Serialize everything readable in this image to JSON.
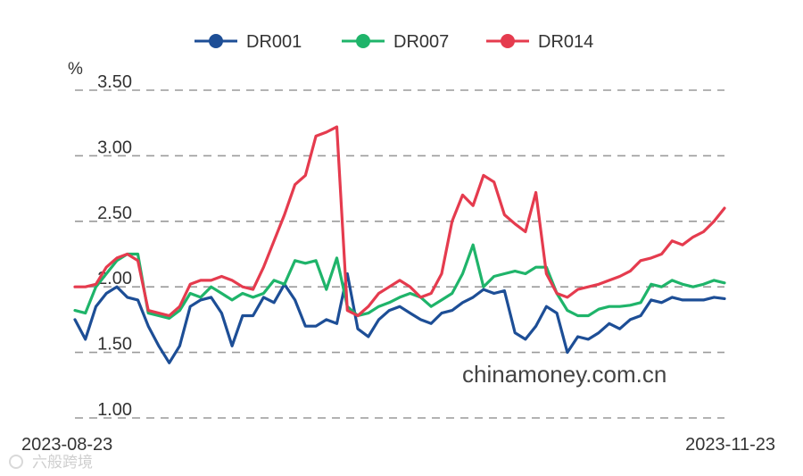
{
  "chart_data": {
    "type": "line",
    "unit_label": "%",
    "ylim": [
      1.0,
      3.5
    ],
    "y_ticks": [
      "1.00",
      "1.50",
      "2.00",
      "2.50",
      "3.00",
      "3.50"
    ],
    "grid": true,
    "legend_position": "top-center",
    "x_start_label": "2023-08-23",
    "x_end_label": "2023-11-23",
    "watermark": "chinamoney.com.cn",
    "logo_text": "六般跨境",
    "series": [
      {
        "name": "DR001",
        "color": "#1d4e96",
        "values": [
          1.75,
          1.6,
          1.85,
          1.95,
          2.0,
          1.92,
          1.9,
          1.7,
          1.55,
          1.42,
          1.55,
          1.85,
          1.9,
          1.92,
          1.8,
          1.55,
          1.78,
          1.78,
          1.92,
          1.88,
          2.02,
          1.9,
          1.7,
          1.7,
          1.75,
          1.72,
          2.1,
          1.68,
          1.62,
          1.75,
          1.82,
          1.85,
          1.8,
          1.75,
          1.72,
          1.8,
          1.82,
          1.88,
          1.92,
          1.98,
          1.95,
          1.97,
          1.65,
          1.6,
          1.7,
          1.85,
          1.8,
          1.5,
          1.62,
          1.6,
          1.65,
          1.72,
          1.68,
          1.75,
          1.78,
          1.9,
          1.88,
          1.92,
          1.9,
          1.9,
          1.9,
          1.92,
          1.91
        ]
      },
      {
        "name": "DR007",
        "color": "#1fb46a",
        "values": [
          1.82,
          1.8,
          2.0,
          2.1,
          2.2,
          2.25,
          2.25,
          1.8,
          1.78,
          1.76,
          1.82,
          1.95,
          1.92,
          2.0,
          1.95,
          1.9,
          1.95,
          1.92,
          1.95,
          2.05,
          2.02,
          2.2,
          2.18,
          2.2,
          1.98,
          2.22,
          1.85,
          1.78,
          1.8,
          1.85,
          1.88,
          1.92,
          1.95,
          1.92,
          1.85,
          1.9,
          1.95,
          2.1,
          2.32,
          2.0,
          2.08,
          2.1,
          2.12,
          2.1,
          2.15,
          2.15,
          1.95,
          1.82,
          1.78,
          1.78,
          1.83,
          1.85,
          1.85,
          1.86,
          1.88,
          2.02,
          2.0,
          2.05,
          2.02,
          2.0,
          2.02,
          2.05,
          2.03
        ]
      },
      {
        "name": "DR014",
        "color": "#e53b4e",
        "values": [
          2.0,
          2.0,
          2.02,
          2.15,
          2.22,
          2.25,
          2.2,
          1.82,
          1.8,
          1.78,
          1.85,
          2.02,
          2.05,
          2.05,
          2.08,
          2.05,
          2.0,
          1.98,
          2.15,
          2.35,
          2.55,
          2.78,
          2.85,
          3.15,
          3.18,
          3.22,
          1.82,
          1.78,
          1.85,
          1.95,
          2.0,
          2.05,
          2.0,
          1.92,
          1.95,
          2.1,
          2.5,
          2.7,
          2.62,
          2.85,
          2.8,
          2.55,
          2.48,
          2.42,
          2.72,
          2.1,
          1.95,
          1.92,
          1.98,
          2.0,
          2.02,
          2.05,
          2.08,
          2.12,
          2.2,
          2.22,
          2.25,
          2.35,
          2.32,
          2.38,
          2.42,
          2.5,
          2.6
        ]
      }
    ]
  }
}
